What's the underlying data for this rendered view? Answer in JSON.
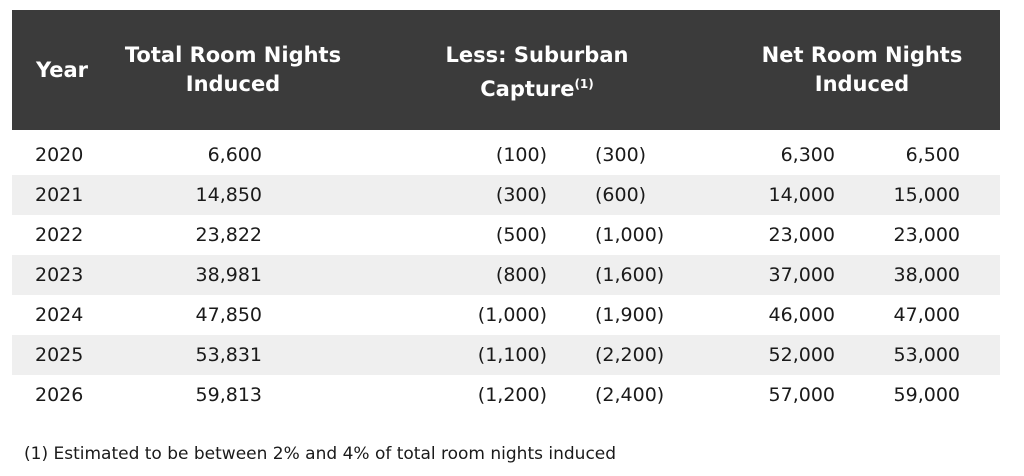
{
  "header": {
    "year": "Year",
    "total": "Total Room Nights Induced",
    "capture": "Less: Suburban Capture",
    "capture_note": "(1)",
    "net": "Net Room Nights Induced"
  },
  "table": {
    "rows": [
      [
        "2020",
        "6,600",
        "(100)",
        "(300)",
        "6,300",
        "6,500"
      ],
      [
        "2021",
        "14,850",
        "(300)",
        "(600)",
        "14,000",
        "15,000"
      ],
      [
        "2022",
        "23,822",
        "(500)",
        "(1,000)",
        "23,000",
        "23,000"
      ],
      [
        "2023",
        "38,981",
        "(800)",
        "(1,600)",
        "37,000",
        "38,000"
      ],
      [
        "2024",
        "47,850",
        "(1,000)",
        "(1,900)",
        "46,000",
        "47,000"
      ],
      [
        "2025",
        "53,831",
        "(1,100)",
        "(2,200)",
        "52,000",
        "53,000"
      ],
      [
        "2026",
        "59,813",
        "(1,200)",
        "(2,400)",
        "57,000",
        "59,000"
      ]
    ]
  },
  "footnote": "(1) Estimated to be between 2% and 4% of total room nights induced"
}
